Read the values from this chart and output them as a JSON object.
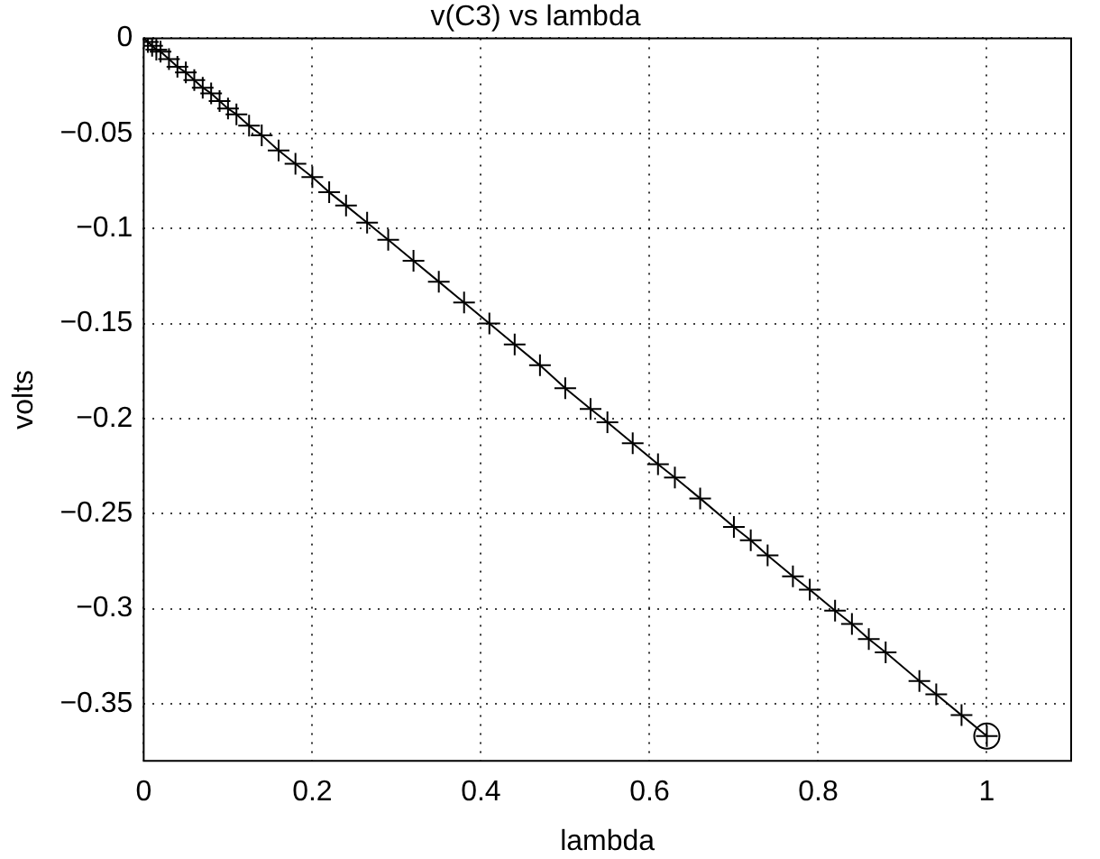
{
  "chart_data": {
    "type": "line",
    "title": "v(C3) vs lambda",
    "xlabel": "lambda",
    "ylabel": "volts",
    "xlim": [
      0,
      1.1
    ],
    "xticks": [
      0,
      0.2,
      0.4,
      0.6,
      0.8,
      1
    ],
    "ylim": [
      -0.38,
      0
    ],
    "yticks": [
      0,
      {
        "value": -0.05,
        "label": "−0.05"
      },
      {
        "value": -0.1,
        "label": "−0.1"
      },
      {
        "value": -0.15,
        "label": "−0.15"
      },
      {
        "value": -0.2,
        "label": "−0.2"
      },
      {
        "value": -0.25,
        "label": "−0.25"
      },
      {
        "value": -0.3,
        "label": "−0.3"
      },
      {
        "value": -0.35,
        "label": "−0.35"
      }
    ],
    "grid": true,
    "legend": false,
    "series": [
      {
        "color": "#000000",
        "marker": "cross",
        "line_style": "solid",
        "x": [
          0,
          0.005,
          0.01,
          0.015,
          0.02,
          0.03,
          0.04,
          0.05,
          0.06,
          0.07,
          0.08,
          0.09,
          0.1,
          0.11,
          0.125,
          0.14,
          0.16,
          0.18,
          0.2,
          0.22,
          0.24,
          0.265,
          0.29,
          0.32,
          0.35,
          0.38,
          0.41,
          0.44,
          0.47,
          0.5,
          0.53,
          0.55,
          0.58,
          0.61,
          0.63,
          0.66,
          0.7,
          0.72,
          0.74,
          0.77,
          0.79,
          0.82,
          0.84,
          0.86,
          0.88,
          0.92,
          0.94,
          0.97,
          1
        ],
        "values": [
          0,
          -0.002,
          -0.004,
          -0.006,
          -0.007,
          -0.011,
          -0.015,
          -0.018,
          -0.022,
          -0.026,
          -0.029,
          -0.033,
          -0.037,
          -0.04,
          -0.046,
          -0.051,
          -0.059,
          -0.066,
          -0.073,
          -0.081,
          -0.088,
          -0.097,
          -0.106,
          -0.117,
          -0.128,
          -0.139,
          -0.15,
          -0.161,
          -0.172,
          -0.184,
          -0.195,
          -0.202,
          -0.213,
          -0.224,
          -0.231,
          -0.242,
          -0.257,
          -0.264,
          -0.272,
          -0.283,
          -0.29,
          -0.301,
          -0.308,
          -0.316,
          -0.323,
          -0.338,
          -0.345,
          -0.356,
          -0.367
        ]
      },
      {
        "color": "#000000",
        "marker": "circle",
        "x": [
          1
        ],
        "values": [
          -0.367
        ]
      }
    ]
  }
}
